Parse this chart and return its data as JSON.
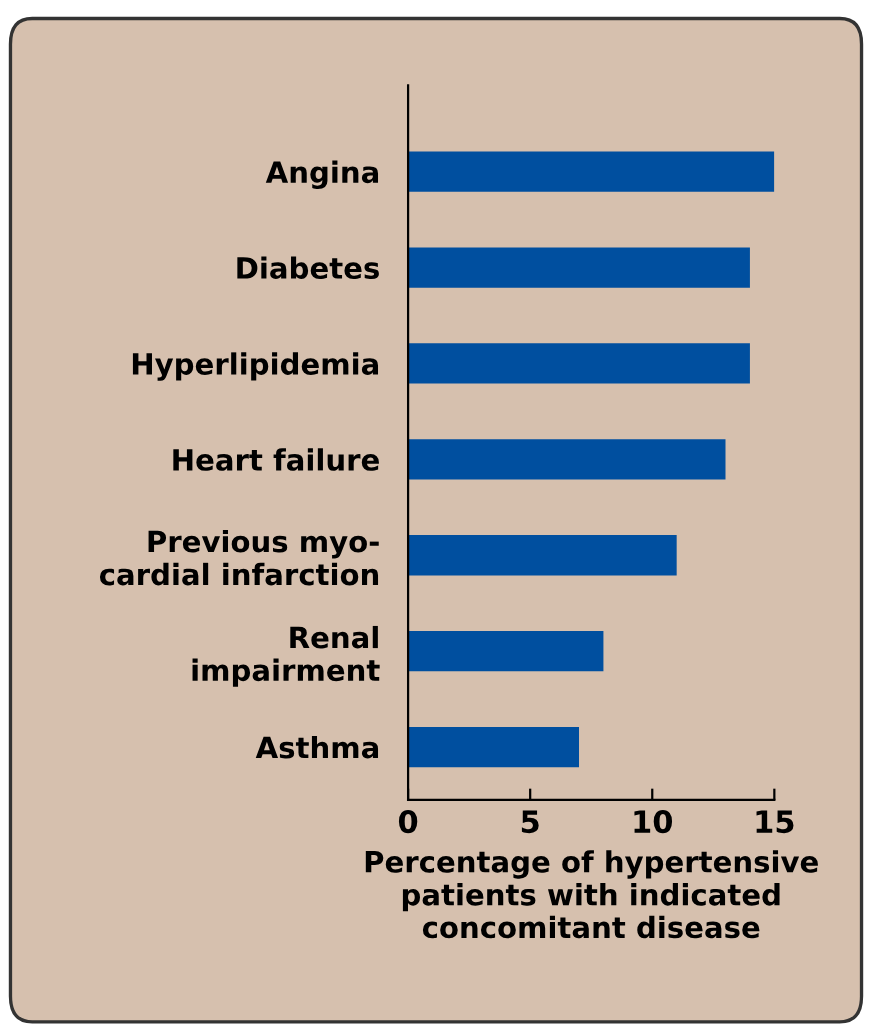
{
  "chart_data": {
    "type": "bar",
    "orientation": "horizontal",
    "categories": [
      "Angina",
      "Diabetes",
      "Hyperlipidemia",
      "Heart failure",
      "Previous myo-\ncardial infarction",
      "Renal\nimpairment",
      "Asthma"
    ],
    "values": [
      15,
      14,
      14,
      13,
      11,
      8,
      7
    ],
    "color": "#004f9f",
    "xlim": [
      0,
      15
    ],
    "xticks": [
      0,
      5,
      10,
      15
    ],
    "xlabel": "Percentage of hypertensive\npatients with indicated\nconcomitant disease"
  }
}
